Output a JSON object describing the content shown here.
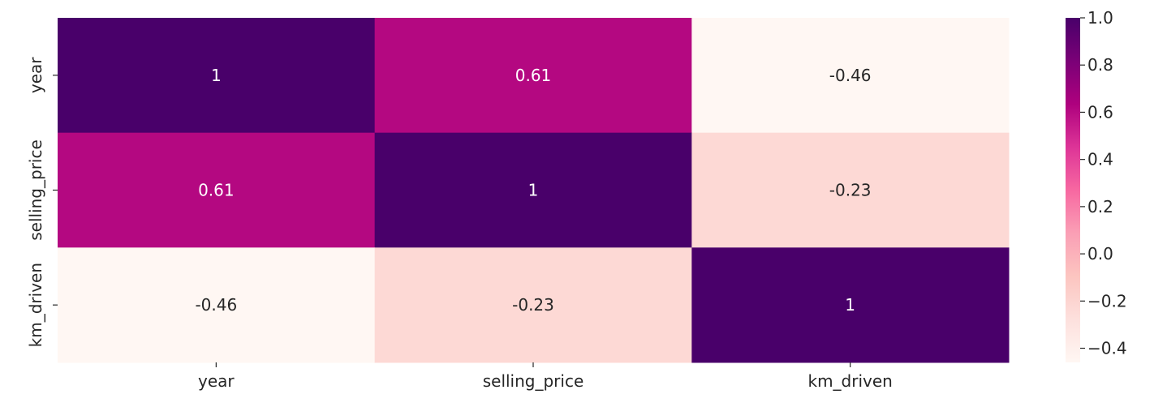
{
  "chart_data": {
    "type": "heatmap",
    "title": "",
    "xlabel": "",
    "ylabel": "",
    "x_labels": [
      "year",
      "selling_price",
      "km_driven"
    ],
    "y_labels": [
      "year",
      "selling_price",
      "km_driven"
    ],
    "values": [
      [
        1,
        0.61,
        -0.46
      ],
      [
        0.61,
        1,
        -0.23
      ],
      [
        -0.46,
        -0.23,
        1
      ]
    ],
    "cell_labels": [
      [
        "1",
        "0.61",
        "-0.46"
      ],
      [
        "0.61",
        "1",
        "-0.23"
      ],
      [
        "-0.46",
        "-0.23",
        "1"
      ]
    ],
    "colorscale": "RdPu",
    "colors": {
      "min": "#fff5f0",
      "max": "#49006a"
    },
    "colorbar": {
      "range": [
        -0.46,
        1.0
      ],
      "ticks": [
        1.0,
        0.8,
        0.6,
        0.4,
        0.2,
        0.0,
        -0.2,
        -0.4
      ],
      "tick_labels": [
        "1.0",
        "0.8",
        "0.6",
        "0.4",
        "0.2",
        "0.0",
        "−0.2",
        "−0.4"
      ],
      "position": "right"
    }
  }
}
